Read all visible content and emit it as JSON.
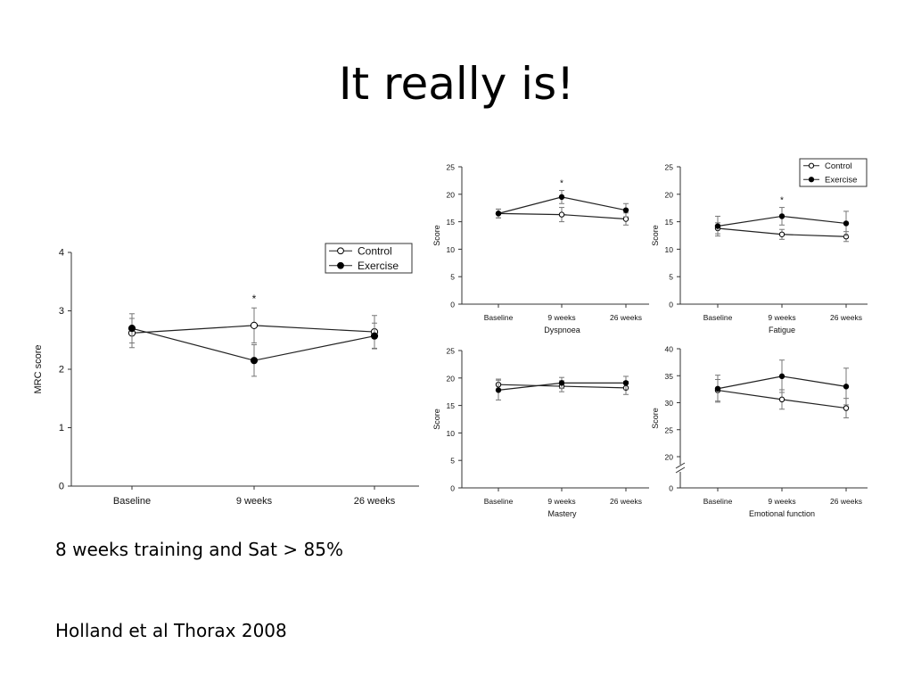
{
  "slide": {
    "title": "It really is!",
    "caption_training": "8 weeks training and Sat > 85%",
    "caption_citation": "Holland et al Thorax 2008"
  },
  "chart_data": [
    {
      "type": "line",
      "id": "mrc",
      "title": "",
      "xlabel": "",
      "ylabel": "MRC score",
      "categories": [
        "Baseline",
        "9 weeks",
        "26 weeks"
      ],
      "ylim": [
        0,
        4
      ],
      "yticks": [
        "0",
        "1",
        "2",
        "3",
        "4"
      ],
      "series": [
        {
          "name": "Control",
          "marker": "open-circle",
          "values": [
            2.62,
            2.75,
            2.64
          ],
          "err": [
            0.25,
            0.3,
            0.28
          ]
        },
        {
          "name": "Exercise",
          "marker": "filled-circle",
          "values": [
            2.7,
            2.15,
            2.57
          ],
          "err": [
            0.25,
            0.27,
            0.22
          ]
        }
      ],
      "annotations": [
        {
          "text": "*",
          "category": "9 weeks"
        }
      ],
      "legend": "top-right"
    },
    {
      "type": "line",
      "id": "dyspnoea",
      "title": "",
      "xlabel": "Dyspnoea",
      "ylabel": "Score",
      "categories": [
        "Baseline",
        "9 weeks",
        "26 weeks"
      ],
      "ylim": [
        0,
        25
      ],
      "yticks": [
        "0",
        "5",
        "10",
        "15",
        "20",
        "25"
      ],
      "series": [
        {
          "name": "Control",
          "marker": "open-circle",
          "values": [
            16.5,
            16.3,
            15.5
          ],
          "err": [
            0.8,
            1.3,
            1.1
          ]
        },
        {
          "name": "Exercise",
          "marker": "filled-circle",
          "values": [
            16.5,
            19.5,
            17.1
          ],
          "err": [
            0.8,
            1.2,
            1.2
          ]
        }
      ],
      "annotations": [
        {
          "text": "*",
          "category": "9 weeks"
        }
      ]
    },
    {
      "type": "line",
      "id": "fatigue",
      "title": "",
      "xlabel": "Fatigue",
      "ylabel": "Score",
      "categories": [
        "Baseline",
        "9 weeks",
        "26 weeks"
      ],
      "ylim": [
        0,
        25
      ],
      "yticks": [
        "0",
        "5",
        "10",
        "15",
        "20",
        "25"
      ],
      "series": [
        {
          "name": "Control",
          "marker": "open-circle",
          "values": [
            13.8,
            12.7,
            12.3
          ],
          "err": [
            1.0,
            0.9,
            0.9
          ]
        },
        {
          "name": "Exercise",
          "marker": "filled-circle",
          "values": [
            14.2,
            16.0,
            14.7
          ],
          "err": [
            1.8,
            1.6,
            2.2
          ]
        }
      ],
      "annotations": [
        {
          "text": "*",
          "category": "9 weeks"
        }
      ],
      "legend": "top-right"
    },
    {
      "type": "line",
      "id": "mastery",
      "title": "",
      "xlabel": "Mastery",
      "ylabel": "Score",
      "categories": [
        "Baseline",
        "9 weeks",
        "26 weeks"
      ],
      "ylim": [
        0,
        25
      ],
      "yticks": [
        "0",
        "5",
        "10",
        "15",
        "20",
        "25"
      ],
      "series": [
        {
          "name": "Control",
          "marker": "open-circle",
          "values": [
            18.8,
            18.5,
            18.2
          ],
          "err": [
            1.0,
            1.0,
            1.2
          ]
        },
        {
          "name": "Exercise",
          "marker": "filled-circle",
          "values": [
            17.8,
            19.1,
            19.1
          ],
          "err": [
            1.8,
            1.0,
            1.2
          ]
        }
      ]
    },
    {
      "type": "line",
      "id": "emotional",
      "title": "",
      "xlabel": "Emotional function",
      "ylabel": "Score",
      "categories": [
        "Baseline",
        "9 weeks",
        "26 weeks"
      ],
      "ylim": [
        15,
        40
      ],
      "axis_break": true,
      "yticks": [
        "20",
        "25",
        "30",
        "35",
        "40"
      ],
      "bottom_tick_label": "0",
      "series": [
        {
          "name": "Control",
          "marker": "open-circle",
          "values": [
            32.3,
            30.6,
            29.0
          ],
          "err": [
            2.0,
            1.8,
            1.8
          ]
        },
        {
          "name": "Exercise",
          "marker": "filled-circle",
          "values": [
            32.6,
            34.9,
            33.0
          ],
          "err": [
            2.5,
            3.0,
            3.4
          ]
        }
      ]
    }
  ]
}
